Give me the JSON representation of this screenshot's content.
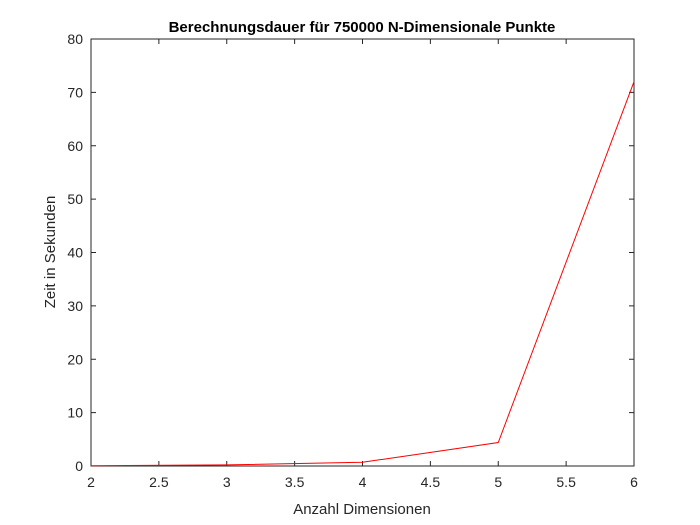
{
  "chart_data": {
    "type": "line",
    "title": "Berechnungsdauer für 750000 N-Dimensionale Punkte",
    "xlabel": "Anzahl Dimensionen",
    "ylabel": "Zeit in Sekunden",
    "xlim": [
      2,
      6
    ],
    "ylim": [
      0,
      80
    ],
    "xticks": [
      "2",
      "2.5",
      "3",
      "3.5",
      "4",
      "4.5",
      "5",
      "5.5",
      "6"
    ],
    "yticks": [
      "0",
      "10",
      "20",
      "30",
      "40",
      "50",
      "60",
      "70",
      "80"
    ],
    "grid": false,
    "legend": "none",
    "series": [
      {
        "color": "#ff0000",
        "x": [
          2,
          3,
          4,
          5,
          6
        ],
        "y": [
          0.05,
          0.2,
          0.7,
          4.4,
          72
        ]
      }
    ]
  }
}
